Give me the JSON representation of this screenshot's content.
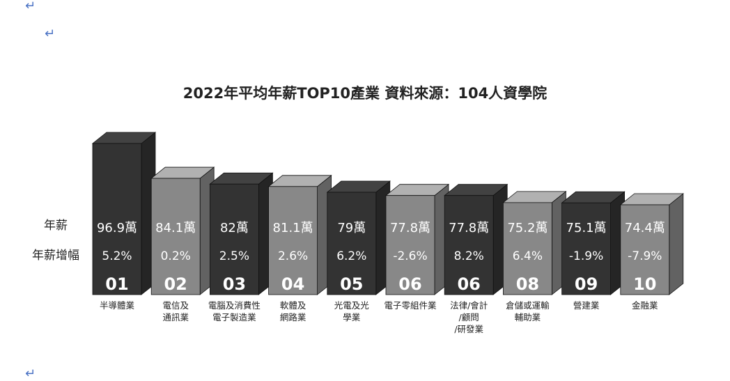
{
  "paragraph_marks": [
    "↵",
    "↵",
    "↵"
  ],
  "chart_data": {
    "type": "bar",
    "title": "2022年平均年薪TOP10產業 資料來源：104人資學院",
    "row_labels": {
      "salary": "年薪",
      "growth": "年薪增幅"
    },
    "ranks": [
      "01",
      "02",
      "03",
      "04",
      "05",
      "06",
      "06",
      "08",
      "09",
      "10"
    ],
    "categories": [
      [
        "半導體業"
      ],
      [
        "電信及",
        "通訊業"
      ],
      [
        "電腦及消費性",
        "電子製造業"
      ],
      [
        "軟體及",
        "網路業"
      ],
      [
        "光電及光",
        "學業"
      ],
      [
        "電子零組件業"
      ],
      [
        "法律/會計",
        "/顧問",
        "/研發業"
      ],
      [
        "倉儲或運輸",
        "輔助業"
      ],
      [
        "營建業"
      ],
      [
        "金融業"
      ]
    ],
    "series": [
      {
        "name": "年薪",
        "values": [
          96.9,
          84.1,
          82,
          81.1,
          79,
          77.8,
          77.8,
          75.2,
          75.1,
          74.4
        ],
        "labels": [
          "96.9萬",
          "84.1萬",
          "82萬",
          "81.1萬",
          "79萬",
          "77.8萬",
          "77.8萬",
          "75.2萬",
          "75.1萬",
          "74.4萬"
        ]
      },
      {
        "name": "年薪增幅",
        "values": [
          5.2,
          0.2,
          2.5,
          2.6,
          6.2,
          -2.6,
          8.2,
          6.4,
          -1.9,
          -7.9
        ],
        "labels": [
          "5.2%",
          "0.2%",
          "2.5%",
          "2.6%",
          "6.2%",
          "-2.6%",
          "8.2%",
          "6.4%",
          "-1.9%",
          "-7.9%"
        ]
      }
    ],
    "bar_colors": [
      "#333333",
      "#888888",
      "#333333",
      "#888888",
      "#333333",
      "#888888",
      "#333333",
      "#888888",
      "#333333",
      "#888888"
    ]
  }
}
